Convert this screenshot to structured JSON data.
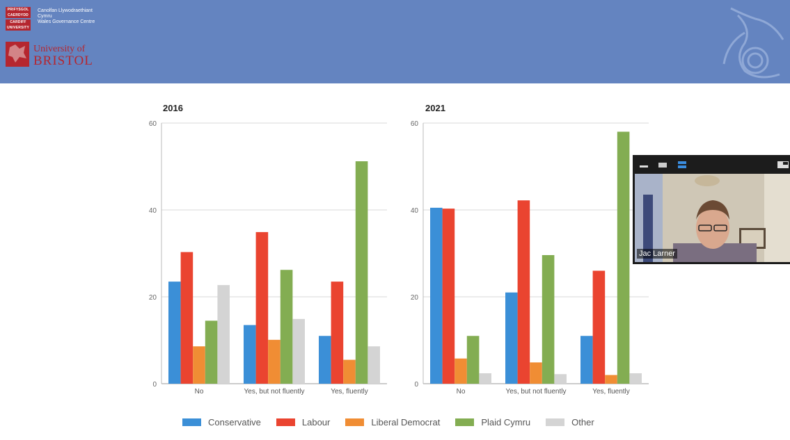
{
  "banner": {
    "crest1_text": "PRIFYSGOL CAERDYDD",
    "crest2_text": "CARDIFF UNIVERSITY",
    "wgc_welsh": "Canolfan Llywodraethiant Cymru",
    "wgc_english": "Wales Governance Centre",
    "bristol_line1": "University of",
    "bristol_line2": "BRISTOL",
    "dragon_icon": "dragon-logo-icon"
  },
  "colors": {
    "banner": "#6484c0",
    "Conservative": "#3b8fd7",
    "Labour": "#ea4430",
    "Liberal Democrat": "#f08d34",
    "Plaid Cymru": "#83ad52",
    "Other": "#d4d4d4"
  },
  "chart_data": [
    {
      "type": "bar",
      "title": "2016",
      "categories": [
        "No",
        "Yes, but not fluently",
        "Yes, fluently"
      ],
      "ylim": [
        0,
        60
      ],
      "yticks": [
        0,
        20,
        40,
        60
      ],
      "grid": true,
      "series": [
        {
          "name": "Conservative",
          "values": [
            23.5,
            13.5,
            11
          ]
        },
        {
          "name": "Labour",
          "values": [
            30.3,
            34.9,
            23.5
          ]
        },
        {
          "name": "Liberal Democrat",
          "values": [
            8.6,
            10.1,
            5.5
          ]
        },
        {
          "name": "Plaid Cymru",
          "values": [
            14.5,
            26.2,
            51.2
          ]
        },
        {
          "name": "Other",
          "values": [
            22.7,
            14.9,
            8.6
          ]
        }
      ]
    },
    {
      "type": "bar",
      "title": "2021",
      "categories": [
        "No",
        "Yes, but not fluently",
        "Yes, fluently"
      ],
      "ylim": [
        0,
        60
      ],
      "yticks": [
        0,
        20,
        40,
        60
      ],
      "grid": true,
      "series": [
        {
          "name": "Conservative",
          "values": [
            40.5,
            21,
            11
          ]
        },
        {
          "name": "Labour",
          "values": [
            40.3,
            42.2,
            26
          ]
        },
        {
          "name": "Liberal Democrat",
          "values": [
            5.8,
            4.9,
            2
          ]
        },
        {
          "name": "Plaid Cymru",
          "values": [
            11,
            29.6,
            58
          ]
        },
        {
          "name": "Other",
          "values": [
            2.4,
            2.2,
            2.4
          ]
        }
      ]
    }
  ],
  "legend": {
    "placement": "bottom-center",
    "items": [
      "Conservative",
      "Labour",
      "Liberal Democrat",
      "Plaid Cymru",
      "Other"
    ]
  },
  "video": {
    "participant_name": "Jac Larner",
    "minimize_icon": "minimize-icon",
    "view_icon": "gallery-view-icon",
    "speaker_icon": "speaker-view-icon",
    "pip_icon": "picture-in-picture-icon"
  }
}
